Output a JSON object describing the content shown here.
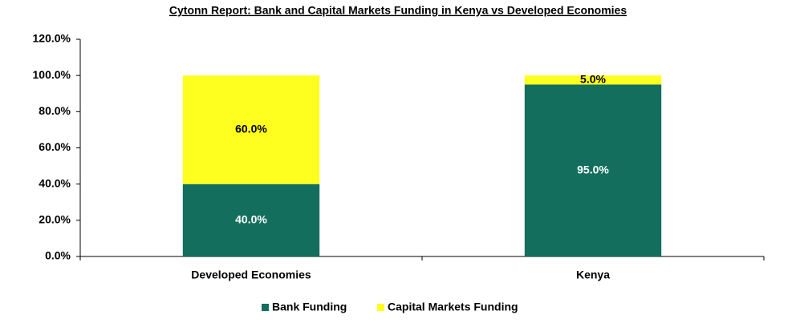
{
  "chart_data": {
    "type": "stacked_bar",
    "title": "Cytonn Report: Bank and Capital Markets Funding in Kenya vs Developed Economies",
    "categories": [
      "Developed Economies",
      "Kenya"
    ],
    "series": [
      {
        "name": "Bank Funding",
        "color": "#136e5e",
        "values": [
          40,
          95
        ],
        "value_labels": [
          "40.0%",
          "95.0%"
        ]
      },
      {
        "name": "Capital Markets Funding",
        "color": "#ffff1f",
        "values": [
          60,
          5
        ],
        "value_labels": [
          "60.0%",
          "5.0%"
        ]
      }
    ],
    "ylim": [
      0,
      120
    ],
    "yticks": [
      {
        "value": 0,
        "label": "0.0%"
      },
      {
        "value": 20,
        "label": "20.0%"
      },
      {
        "value": 40,
        "label": "40.0%"
      },
      {
        "value": 60,
        "label": "60.0%"
      },
      {
        "value": 80,
        "label": "80.0%"
      },
      {
        "value": 100,
        "label": "100.0%"
      },
      {
        "value": 120,
        "label": "120.0%"
      }
    ],
    "grid": false,
    "legend": "bottom"
  }
}
